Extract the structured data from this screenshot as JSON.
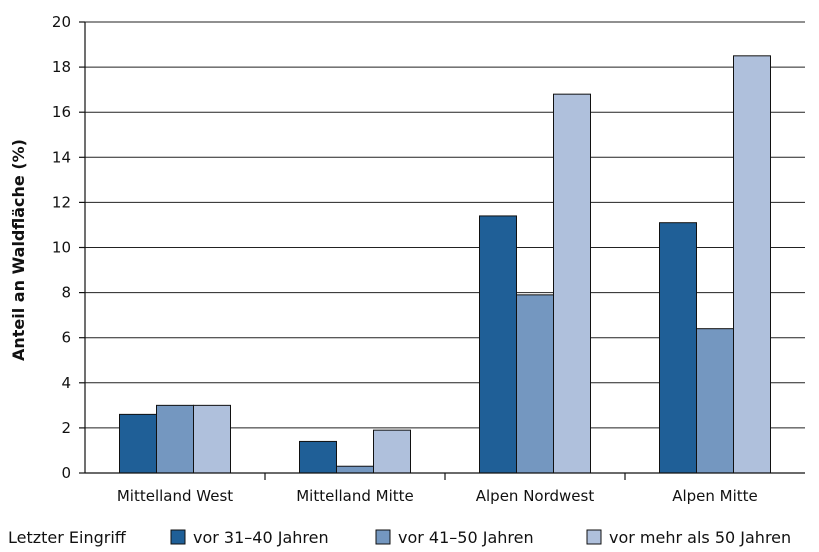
{
  "chart_data": {
    "type": "bar",
    "categories": [
      "Mittelland West",
      "Mittelland Mitte",
      "Alpen Nordwest",
      "Alpen Mitte"
    ],
    "series": [
      {
        "name": "vor 31–40 Jahren",
        "values": [
          2.6,
          1.4,
          11.4,
          11.1
        ],
        "color": "#1f5f97"
      },
      {
        "name": "vor 41–50 Jahren",
        "values": [
          3.0,
          0.3,
          7.9,
          6.4
        ],
        "color": "#7497c0"
      },
      {
        "name": "vor mehr als 50 Jahren",
        "values": [
          3.0,
          1.9,
          16.8,
          18.5
        ],
        "color": "#afc0dc"
      }
    ],
    "ylabel": "Anteil an Waldfläche (%)",
    "ylim": [
      0,
      20
    ],
    "yticks": [
      "0",
      "2",
      "4",
      "6",
      "8",
      "10",
      "12",
      "14",
      "16",
      "18",
      "20"
    ],
    "grid": true,
    "legend_title": "Letzter Eingriff",
    "legend_position": "bottom"
  }
}
